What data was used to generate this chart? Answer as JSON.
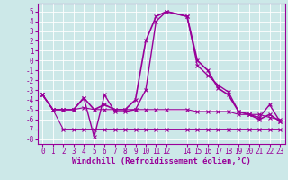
{
  "xlabel": "Windchill (Refroidissement éolien,°C)",
  "background_color": "#cce8e8",
  "grid_color": "#aadddd",
  "line_color": "#990099",
  "x_ticks": [
    0,
    1,
    2,
    3,
    4,
    5,
    6,
    7,
    8,
    9,
    10,
    11,
    12,
    14,
    15,
    16,
    17,
    18,
    19,
    20,
    21,
    22,
    23
  ],
  "x_tick_labels": [
    "0",
    "1",
    "2",
    "3",
    "4",
    "5",
    "6",
    "7",
    "8",
    "9",
    "101112",
    "",
    "",
    "141516171819202122 23",
    "",
    "",
    "",
    "",
    "",
    "",
    "",
    "",
    ""
  ],
  "y_ticks": [
    5,
    4,
    3,
    2,
    1,
    0,
    -1,
    -2,
    -3,
    -4,
    -5,
    -6,
    -7,
    -8
  ],
  "ylim": [
    -8.5,
    5.8
  ],
  "xlim": [
    -0.5,
    23.5
  ],
  "series": [
    {
      "x": [
        0,
        1,
        2,
        3,
        4,
        5,
        6,
        7,
        8,
        9,
        10,
        11,
        12,
        14,
        15,
        16,
        17,
        18,
        19,
        20,
        21,
        22,
        23
      ],
      "y": [
        -3.5,
        -5.0,
        -7.0,
        -7.0,
        -7.0,
        -7.0,
        -7.0,
        -7.0,
        -7.0,
        -7.0,
        -7.0,
        -7.0,
        -7.0,
        -7.0,
        -7.0,
        -7.0,
        -7.0,
        -7.0,
        -7.0,
        -7.0,
        -7.0,
        -7.0,
        -7.0
      ],
      "color": "#990099",
      "linewidth": 0.8,
      "marker": "x",
      "markersize": 2.5
    },
    {
      "x": [
        0,
        1,
        2,
        3,
        4,
        5,
        6,
        7,
        8,
        9,
        10,
        11,
        12,
        14,
        15,
        16,
        17,
        18,
        19,
        20,
        21,
        22,
        23
      ],
      "y": [
        -3.5,
        -5.0,
        -5.0,
        -5.0,
        -4.8,
        -5.0,
        -5.0,
        -5.0,
        -5.0,
        -5.0,
        -5.0,
        -5.0,
        -5.0,
        -5.0,
        -5.2,
        -5.2,
        -5.2,
        -5.2,
        -5.5,
        -5.5,
        -5.5,
        -5.8,
        -6.0
      ],
      "color": "#990099",
      "linewidth": 0.8,
      "marker": "x",
      "markersize": 2.5
    },
    {
      "x": [
        0,
        1,
        2,
        3,
        4,
        5,
        6,
        7,
        8,
        9,
        10,
        11,
        12,
        14,
        15,
        16,
        17,
        18,
        19,
        20,
        21,
        22,
        23
      ],
      "y": [
        -3.5,
        -5.0,
        -5.0,
        -5.0,
        -3.8,
        -7.8,
        -3.5,
        -5.2,
        -5.2,
        -5.0,
        -3.0,
        4.0,
        5.0,
        4.5,
        -0.5,
        -1.5,
        -2.5,
        -3.2,
        -5.2,
        -5.5,
        -5.8,
        -4.5,
        -6.2
      ],
      "color": "#990099",
      "linewidth": 1.0,
      "marker": "x",
      "markersize": 3
    },
    {
      "x": [
        0,
        1,
        2,
        3,
        4,
        5,
        6,
        7,
        8,
        9,
        10,
        11,
        12,
        14,
        15,
        16,
        17,
        18,
        19,
        20,
        21,
        22,
        23
      ],
      "y": [
        -3.5,
        -5.0,
        -5.0,
        -5.0,
        -3.8,
        -5.0,
        -4.5,
        -5.0,
        -5.0,
        -4.0,
        2.0,
        4.5,
        5.0,
        4.5,
        0.0,
        -1.0,
        -2.8,
        -3.5,
        -5.2,
        -5.5,
        -6.0,
        -5.5,
        -6.2
      ],
      "color": "#990099",
      "linewidth": 1.2,
      "marker": "x",
      "markersize": 3
    }
  ],
  "tick_fontsize": 5.5,
  "xlabel_fontsize": 6.5
}
